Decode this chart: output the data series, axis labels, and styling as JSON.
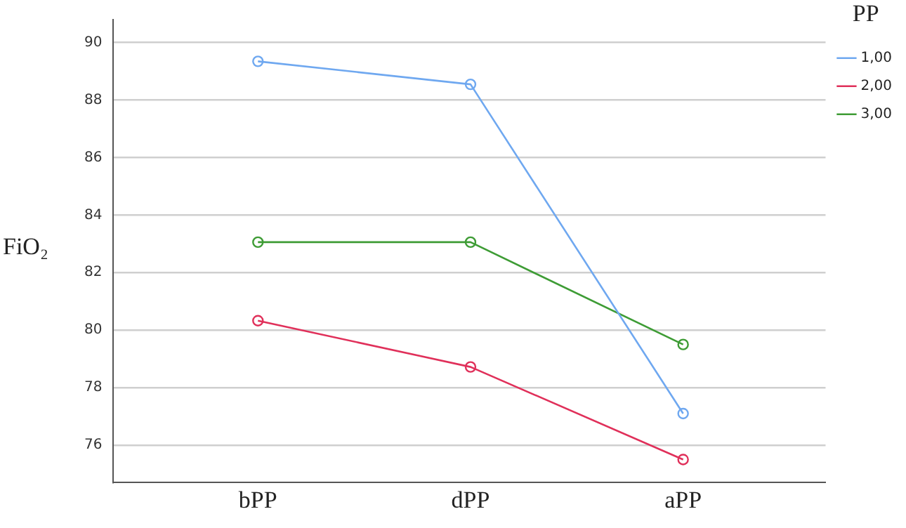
{
  "chart_data": {
    "type": "line",
    "ylabel": "FiO₂",
    "legend_title": "PP",
    "categories": [
      "bPP",
      "dPP",
      "aPP"
    ],
    "series": [
      {
        "name": "1,00",
        "color": "#6fa8f0",
        "values": [
          89.35,
          88.55,
          77.1
        ]
      },
      {
        "name": "2,00",
        "color": "#e0305a",
        "values": [
          80.33,
          78.72,
          75.5
        ]
      },
      {
        "name": "3,00",
        "color": "#3e9c35",
        "values": [
          83.06,
          83.06,
          79.5
        ]
      }
    ],
    "ylim": [
      74.7,
      90.8
    ],
    "yticks": [
      76,
      78,
      80,
      82,
      84,
      86,
      88,
      90
    ],
    "grid": "y",
    "legend": "top right",
    "marker": "circle",
    "line_style": "solid"
  }
}
